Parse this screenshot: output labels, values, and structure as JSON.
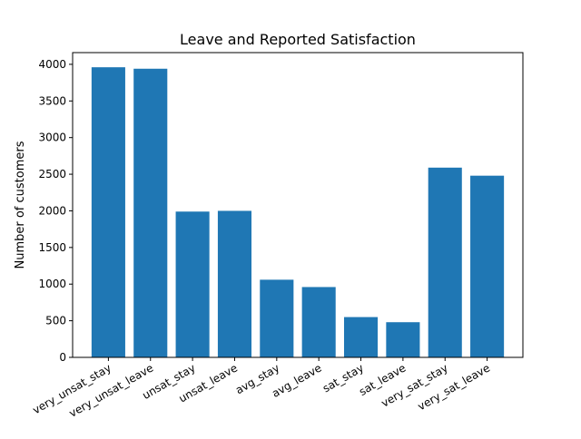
{
  "chart_data": {
    "type": "bar",
    "title": "Leave and Reported Satisfaction",
    "xlabel": "",
    "ylabel": "Number of customers",
    "categories": [
      "very_unsat_stay",
      "very_unsat_leave",
      "unsat_stay",
      "unsat_leave",
      "avg_stay",
      "avg_leave",
      "sat_stay",
      "sat_leave",
      "very_sat_stay",
      "very_sat_leave"
    ],
    "values": [
      3960,
      3940,
      1990,
      2000,
      1060,
      960,
      550,
      480,
      2590,
      2480
    ],
    "ylim": [
      0,
      4160
    ],
    "yticks": [
      0,
      500,
      1000,
      1500,
      2000,
      2500,
      3000,
      3500,
      4000
    ],
    "grid": false,
    "legend": "none",
    "bar_color": "#1f77b4"
  }
}
